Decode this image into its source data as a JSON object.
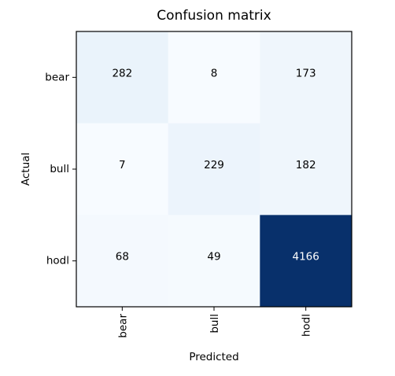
{
  "chart_data": {
    "type": "heatmap",
    "title": "Confusion matrix",
    "xlabel": "Predicted",
    "ylabel": "Actual",
    "x_categories": [
      "bear",
      "bull",
      "hodl"
    ],
    "y_categories": [
      "bear",
      "bull",
      "hodl"
    ],
    "values": [
      [
        282,
        8,
        173
      ],
      [
        7,
        229,
        182
      ],
      [
        68,
        49,
        4166
      ]
    ],
    "colormap": "Blues",
    "colors": {
      "low": "#f7fbff",
      "high": "#08306b",
      "text_dark": "#000000",
      "text_light": "#ffffff"
    },
    "grid": false,
    "colorbar": false
  }
}
